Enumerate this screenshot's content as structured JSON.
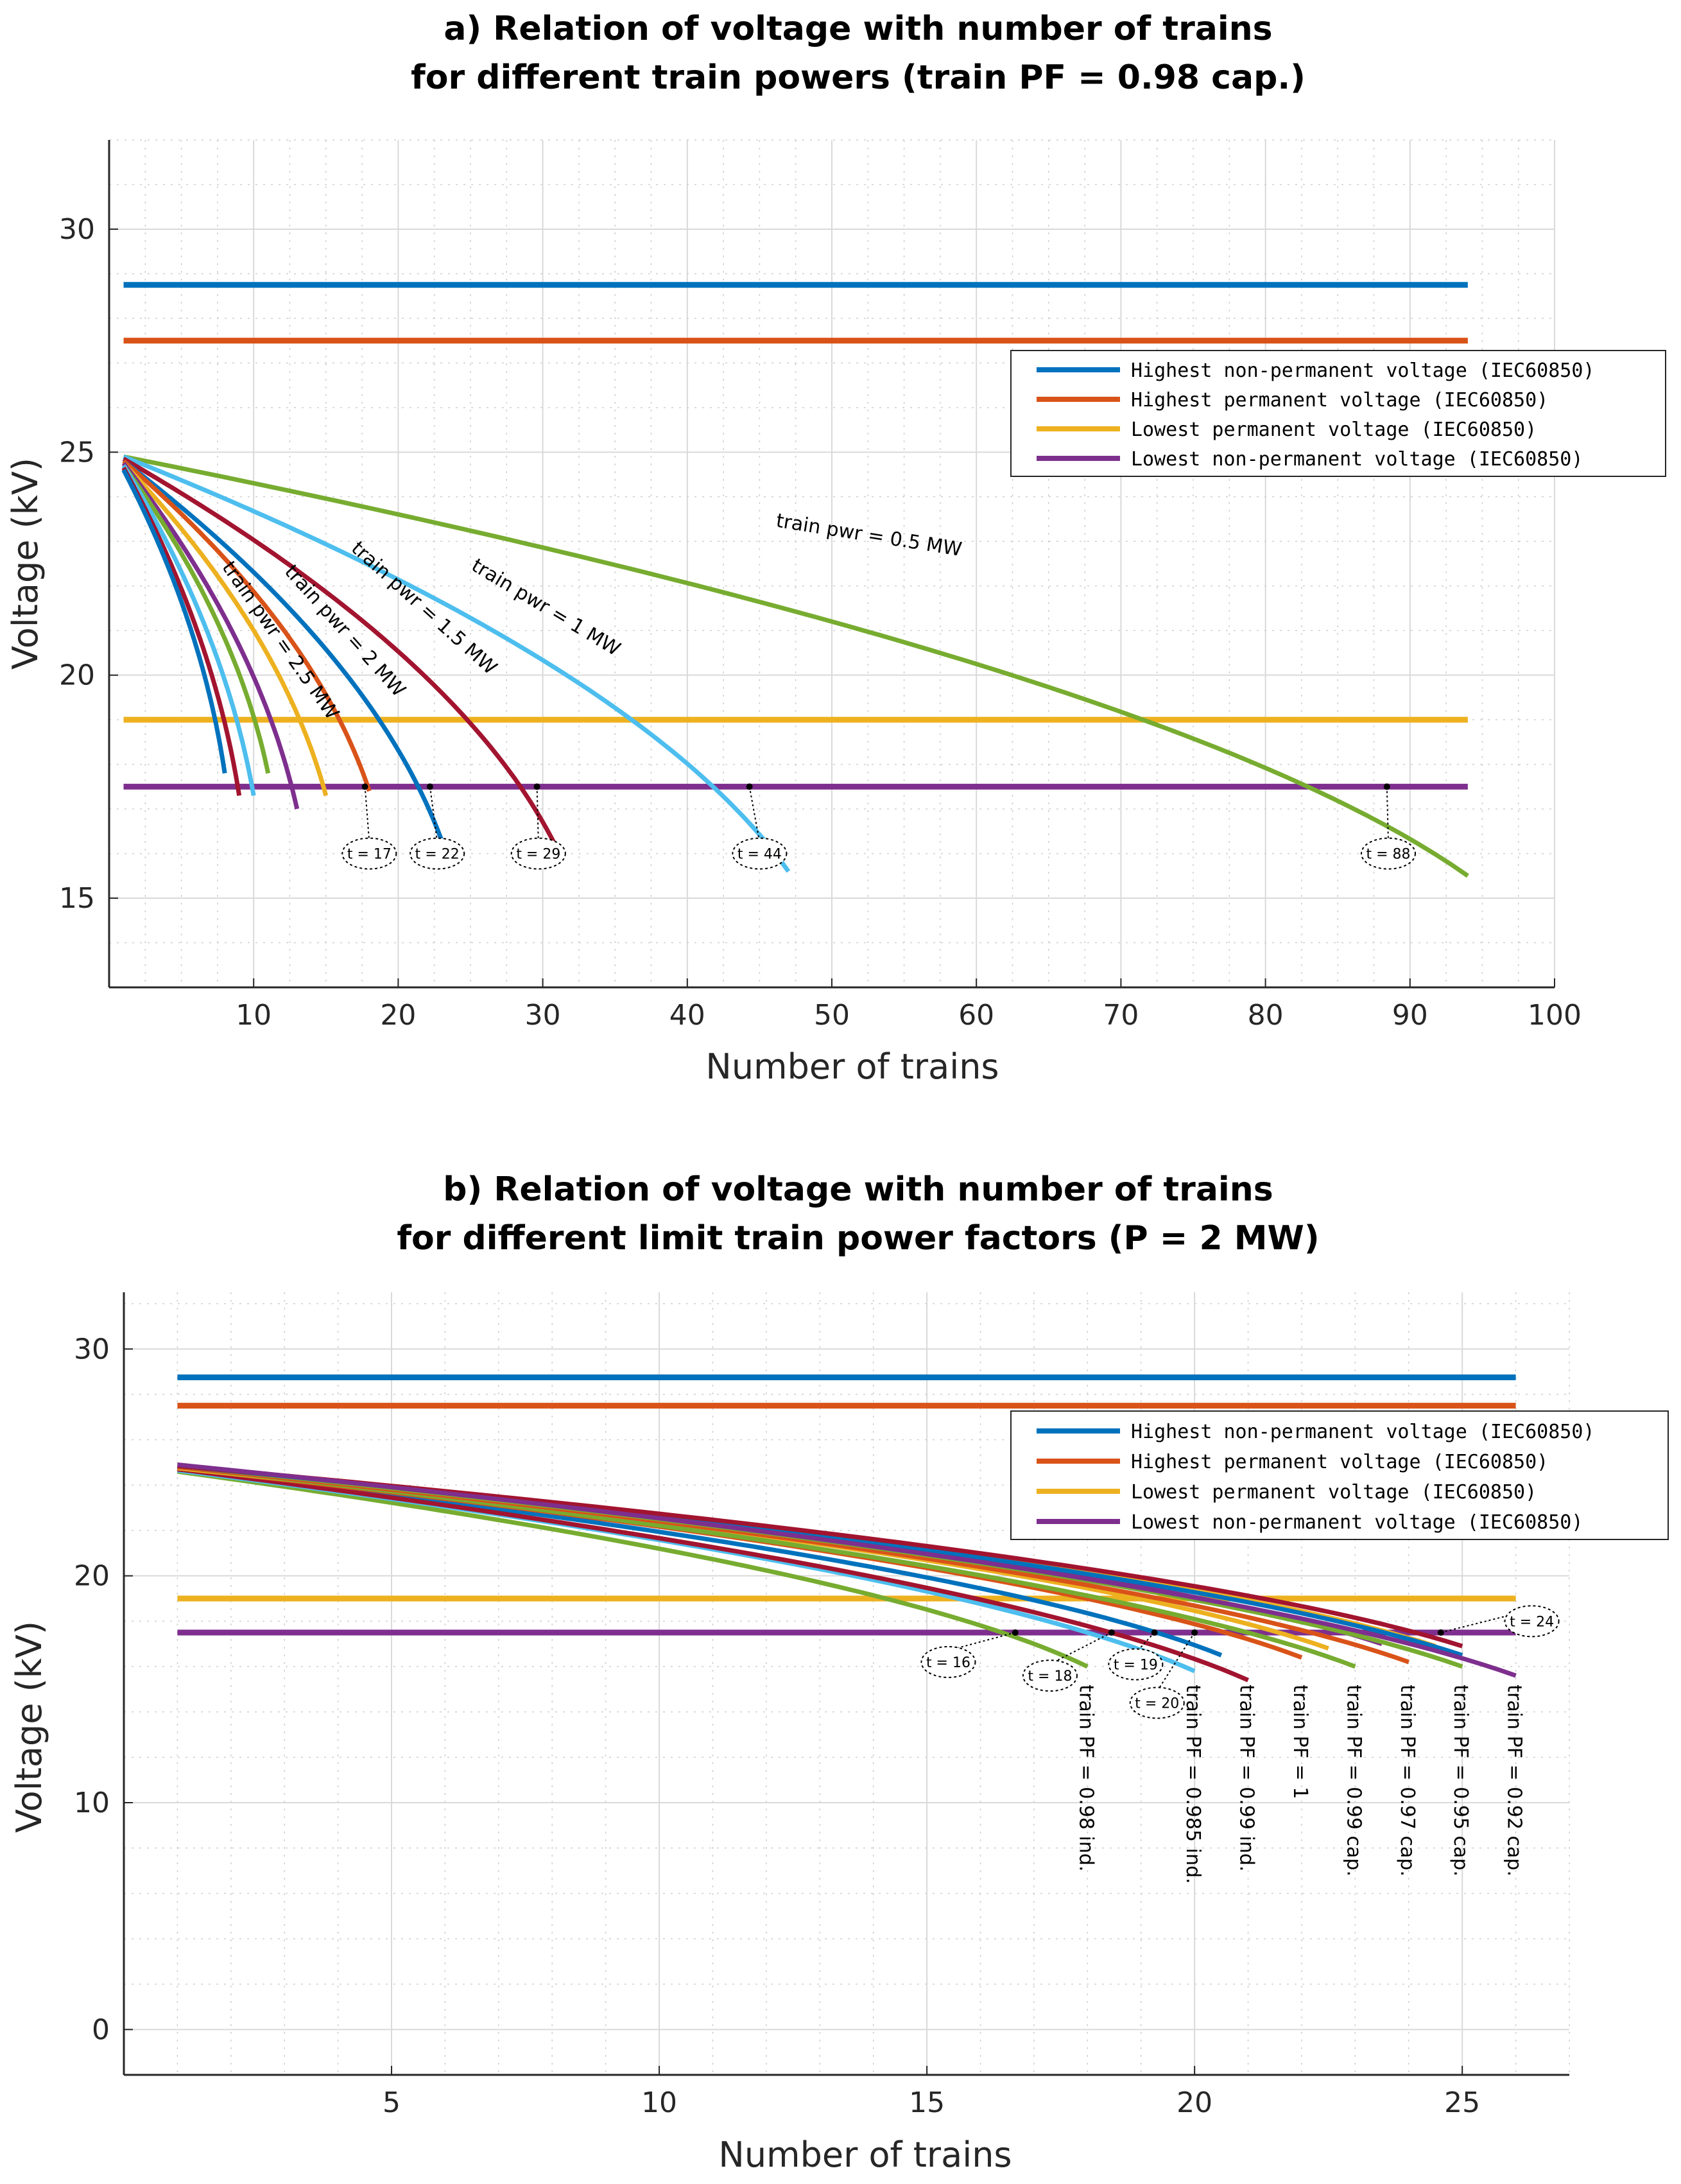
{
  "colors": {
    "blue": "#0072BD",
    "orange": "#D95319",
    "yellow": "#EDB120",
    "purple": "#7E2F8E",
    "green": "#77AC30",
    "cyan": "#4DBEEE",
    "darkred": "#A2142F"
  },
  "chart_data": [
    {
      "type": "line",
      "title": "a) Relation of voltage with number of trains",
      "subtitle": "for different train powers (train PF = 0.98 cap.)",
      "xlabel": "Number of trains",
      "ylabel": "Voltage (kV)",
      "xlim": [
        0,
        100
      ],
      "ylim": [
        13,
        32
      ],
      "xticks": [
        10,
        20,
        30,
        40,
        50,
        60,
        70,
        80,
        90,
        100
      ],
      "yticks": [
        15,
        20,
        25,
        30
      ],
      "grid": true,
      "legend_position": "upper-right",
      "limit_lines": [
        {
          "name": "Highest non-permanent voltage (IEC60850)",
          "color": "blue",
          "y": 28.75,
          "x": [
            1,
            94
          ]
        },
        {
          "name": "Highest permanent voltage (IEC60850)",
          "color": "orange",
          "y": 27.5,
          "x": [
            1,
            94
          ]
        },
        {
          "name": "Lowest permanent voltage (IEC60850)",
          "color": "yellow",
          "y": 19,
          "x": [
            1,
            94
          ]
        },
        {
          "name": "Lowest non-permanent voltage (IEC60850)",
          "color": "purple",
          "y": 17.5,
          "x": [
            1,
            94
          ]
        }
      ],
      "series": [
        {
          "name": "train pwr = 0.5 MW",
          "color": "green",
          "N": 94,
          "v0": 24.9,
          "ve": 15.5
        },
        {
          "name": "train pwr = 1 MW",
          "color": "cyan",
          "N": 47,
          "v0": 24.9,
          "ve": 15.6
        },
        {
          "name": "train pwr = 1.5 MW",
          "color": "darkred",
          "N": 31,
          "v0": 24.85,
          "ve": 16.1
        },
        {
          "name": "train pwr = 2 MW",
          "color": "blue",
          "N": 23,
          "v0": 24.8,
          "ve": 16.3
        },
        {
          "name": "train pwr = 2.5 MW",
          "color": "orange",
          "N": 18,
          "v0": 24.8,
          "ve": 17.4
        },
        {
          "name": "",
          "color": "yellow",
          "N": 15,
          "v0": 24.75,
          "ve": 17.3
        },
        {
          "name": "",
          "color": "purple",
          "N": 13,
          "v0": 24.75,
          "ve": 17.0
        },
        {
          "name": "",
          "color": "green",
          "N": 11,
          "v0": 24.7,
          "ve": 17.8
        },
        {
          "name": "",
          "color": "cyan",
          "N": 10,
          "v0": 24.7,
          "ve": 17.3
        },
        {
          "name": "",
          "color": "darkred",
          "N": 9,
          "v0": 24.65,
          "ve": 17.3
        },
        {
          "name": "",
          "color": "blue",
          "N": 8,
          "v0": 24.6,
          "ve": 17.8
        }
      ],
      "annotations": [
        {
          "label": "train pwr = 0.5 MW",
          "x": 52.5,
          "y": 23.0,
          "angle": 9
        },
        {
          "label": "train pwr = 1 MW",
          "x": 30.0,
          "y": 21.4,
          "angle": 31
        },
        {
          "label": "train pwr = 1.5 MW",
          "x": 21.5,
          "y": 21.4,
          "angle": 42
        },
        {
          "label": "train pwr = 2 MW",
          "x": 16.0,
          "y": 20.9,
          "angle": 48
        },
        {
          "label": "train pwr = 2.5 MW",
          "x": 11.5,
          "y": 20.7,
          "angle": 55
        }
      ],
      "markers": [
        {
          "label": "t = 17",
          "x": 17.7,
          "y": 17.5,
          "bx": 18.0,
          "by": 16.0
        },
        {
          "label": "t = 22",
          "x": 22.2,
          "y": 17.5,
          "bx": 22.7,
          "by": 16.0
        },
        {
          "label": "t = 29",
          "x": 29.6,
          "y": 17.5,
          "bx": 29.7,
          "by": 16.0
        },
        {
          "label": "t = 44",
          "x": 44.3,
          "y": 17.5,
          "bx": 45.0,
          "by": 16.0
        },
        {
          "label": "t = 88",
          "x": 88.4,
          "y": 17.5,
          "bx": 88.5,
          "by": 16.0
        }
      ]
    },
    {
      "type": "line",
      "title": "b) Relation of voltage with number of trains",
      "subtitle": "for different limit train power factors (P = 2 MW)",
      "xlabel": "Number of trains",
      "ylabel": "Voltage (kV)",
      "xlim": [
        0,
        27
      ],
      "ylim": [
        -2,
        32.5
      ],
      "xticks": [
        5,
        10,
        15,
        20,
        25
      ],
      "yticks": [
        0,
        10,
        20,
        30
      ],
      "grid": true,
      "legend_position": "upper-right",
      "limit_lines": [
        {
          "name": "Highest non-permanent voltage (IEC60850)",
          "color": "blue",
          "y": 28.75,
          "x": [
            1,
            26
          ]
        },
        {
          "name": "Highest permanent voltage (IEC60850)",
          "color": "orange",
          "y": 27.5,
          "x": [
            1,
            26
          ]
        },
        {
          "name": "Lowest permanent voltage (IEC60850)",
          "color": "yellow",
          "y": 19,
          "x": [
            1,
            26
          ]
        },
        {
          "name": "Lowest non-permanent voltage (IEC60850)",
          "color": "purple",
          "y": 17.5,
          "x": [
            1,
            26
          ]
        }
      ],
      "series": [
        {
          "name": "train PF = 0.98 ind.",
          "color": "green",
          "N": 18,
          "v0": 24.6,
          "ve": 16.0
        },
        {
          "name": "",
          "color": "cyan",
          "N": 20,
          "v0": 24.65,
          "ve": 15.8
        },
        {
          "name": "train PF = 0.985 ind.",
          "color": "blue",
          "N": 20.5,
          "v0": 24.7,
          "ve": 16.5
        },
        {
          "name": "train PF = 0.99 ind.",
          "color": "darkred",
          "N": 21,
          "v0": 24.7,
          "ve": 15.4
        },
        {
          "name": "train PF = 1",
          "color": "orange",
          "N": 22,
          "v0": 24.75,
          "ve": 16.4
        },
        {
          "name": "",
          "color": "yellow",
          "N": 22.5,
          "v0": 24.75,
          "ve": 16.8
        },
        {
          "name": "train PF = 0.99 cap.",
          "color": "green",
          "N": 23,
          "v0": 24.8,
          "ve": 16.0
        },
        {
          "name": "",
          "color": "purple",
          "N": 23.5,
          "v0": 24.8,
          "ve": 17.0
        },
        {
          "name": "train PF = 0.97 cap.",
          "color": "orange",
          "N": 24,
          "v0": 24.8,
          "ve": 16.2
        },
        {
          "name": "",
          "color": "yellow",
          "N": 24.5,
          "v0": 24.85,
          "ve": 16.9
        },
        {
          "name": "train PF = 0.95 cap.",
          "color": "green",
          "N": 25,
          "v0": 24.85,
          "ve": 16.0
        },
        {
          "name": "",
          "color": "blue",
          "N": 25,
          "v0": 24.85,
          "ve": 16.5
        },
        {
          "name": "",
          "color": "darkred",
          "N": 25,
          "v0": 24.85,
          "ve": 16.9
        },
        {
          "name": "train PF = 0.92 cap.",
          "color": "purple",
          "N": 26,
          "v0": 24.9,
          "ve": 15.6
        }
      ],
      "vertical_labels": [
        {
          "label": "train PF = 0.98 ind.",
          "x": 18.0
        },
        {
          "label": "train PF = 0.985 ind.",
          "x": 20.0
        },
        {
          "label": "train PF = 0.99 ind.",
          "x": 21.0
        },
        {
          "label": "train PF = 1",
          "x": 22.0
        },
        {
          "label": "train PF = 0.99 cap.",
          "x": 23.0
        },
        {
          "label": "train PF = 0.97 cap.",
          "x": 24.0
        },
        {
          "label": "train PF = 0.95 cap.",
          "x": 25.0
        },
        {
          "label": "train PF = 0.92 cap.",
          "x": 26.0
        }
      ],
      "markers": [
        {
          "label": "t = 16",
          "x": 16.65,
          "y": 17.5,
          "bx": 15.4,
          "by": 16.2
        },
        {
          "label": "t = 18",
          "x": 18.45,
          "y": 17.5,
          "bx": 17.3,
          "by": 15.6
        },
        {
          "label": "t = 19",
          "x": 19.25,
          "y": 17.5,
          "bx": 18.9,
          "by": 16.1
        },
        {
          "label": "t = 20",
          "x": 20.0,
          "y": 17.5,
          "bx": 19.3,
          "by": 14.4
        },
        {
          "label": "t = 24",
          "x": 24.6,
          "y": 17.5,
          "bx": 26.3,
          "by": 18.0
        }
      ]
    }
  ]
}
